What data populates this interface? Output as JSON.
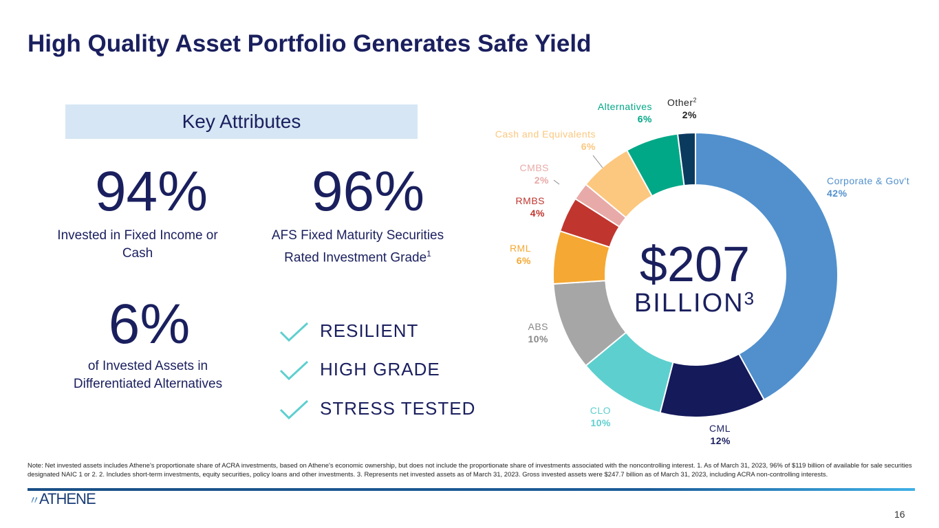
{
  "title": "High Quality Asset Portfolio Generates Safe Yield",
  "key_attributes": "Key Attributes",
  "stats": [
    {
      "value": "94%",
      "label": "Invested in Fixed Income or Cash"
    },
    {
      "value": "96%",
      "label": "AFS Fixed Maturity Securities Rated Investment Grade",
      "sup": "1"
    },
    {
      "value": "6%",
      "label": "of Invested Assets in Differentiated Alternatives"
    }
  ],
  "checks": [
    "RESILIENT",
    "HIGH GRADE",
    "STRESS TESTED"
  ],
  "chart_data": {
    "type": "pie",
    "donut": true,
    "center_value": "$207",
    "center_unit": "BILLION",
    "center_sup": "3",
    "labels": [
      "Corporate & Gov't",
      "CML",
      "CLO",
      "ABS",
      "RML",
      "RMBS",
      "CMBS",
      "Cash and Equivalents",
      "Alternatives",
      "Other"
    ],
    "label_sups": [
      "",
      "",
      "",
      "",
      "",
      "",
      "",
      "",
      "",
      "2"
    ],
    "values": [
      42,
      12,
      10,
      10,
      6,
      4,
      2,
      6,
      6,
      2
    ],
    "value_labels": [
      "42%",
      "12%",
      "10%",
      "10%",
      "6%",
      "4%",
      "2%",
      "6%",
      "6%",
      "2%"
    ],
    "colors": [
      "#5190cd",
      "#141a5a",
      "#5ecfcf",
      "#a6a6a6",
      "#f5a833",
      "#c0362f",
      "#e8aaa8",
      "#fcc77e",
      "#00a887",
      "#0b3a5f"
    ]
  },
  "note": "Note: Net invested assets includes Athene's proportionate share of ACRA investments, based on Athene's economic ownership, but does not include the proportionate share of investments associated with the noncontrolling interest.  1. As of March 31, 2023, 96% of $119 billion of available for sale securities designated NAIC 1 or 2.  2. Includes short-term investments, equity securities, policy loans and other investments.  3. Represents net invested assets as of March 31, 2023. Gross invested assets were $247.7 billion as of March 31, 2023, including ACRA non-controlling interests.",
  "logo": "ATHENE",
  "page_number": "16"
}
